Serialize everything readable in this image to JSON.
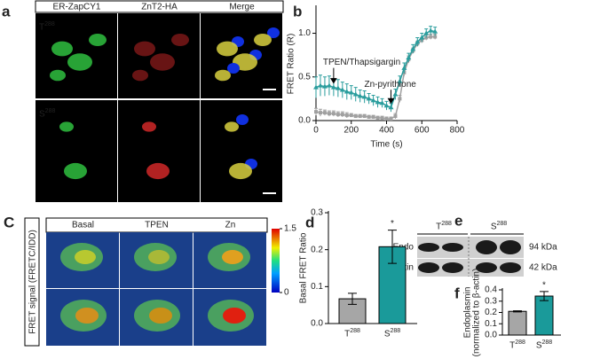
{
  "panel_labels": [
    "a",
    "b",
    "C",
    "d",
    "e",
    "f"
  ],
  "panel_a": {
    "columns": [
      "ER-ZapCY1",
      "ZnT2-HA",
      "Merge"
    ],
    "rows": [
      "T288",
      "S288"
    ]
  },
  "panel_c": {
    "columns": [
      "Basal",
      "TPEN",
      "Zn"
    ],
    "y_label": "FRET signal (FRETC/IDD)",
    "colorbar": {
      "range": [
        0,
        1.5
      ],
      "ticks": [
        0,
        1.5
      ]
    }
  },
  "panel_e": {
    "groups": [
      "T288",
      "S288"
    ],
    "bands": [
      "Endo",
      "β-actin"
    ],
    "sizes": [
      "94 kDa",
      "42 kDa"
    ]
  },
  "chart_data": [
    {
      "type": "line",
      "x_label": "Time (s)",
      "y_label": "FRET Ratio (R)",
      "annotations": [
        "TPEN/Thapsigargin",
        "Zn-pyrithione"
      ],
      "x": [
        0,
        25,
        50,
        75,
        100,
        125,
        150,
        175,
        200,
        225,
        250,
        275,
        300,
        325,
        350,
        375,
        400,
        425,
        450,
        475,
        500,
        525,
        550,
        575,
        600,
        625,
        650,
        675
      ],
      "series": [
        {
          "color": "#2a9d9d",
          "values": [
            0.38,
            0.4,
            0.39,
            0.4,
            0.38,
            0.37,
            0.35,
            0.33,
            0.32,
            0.3,
            0.28,
            0.27,
            0.25,
            0.23,
            0.21,
            0.2,
            0.17,
            0.15,
            0.3,
            0.45,
            0.6,
            0.72,
            0.82,
            0.9,
            0.95,
            1.0,
            1.03,
            1.02
          ],
          "errors": [
            0.12,
            0.12,
            0.11,
            0.11,
            0.1,
            0.1,
            0.09,
            0.09,
            0.08,
            0.08,
            0.07,
            0.07,
            0.06,
            0.06,
            0.06,
            0.05,
            0.05,
            0.05,
            0.06,
            0.06,
            0.06,
            0.05,
            0.05,
            0.05,
            0.05,
            0.05,
            0.05,
            0.05
          ]
        },
        {
          "color": "#a0a0a0",
          "values": [
            0.1,
            0.09,
            0.09,
            0.08,
            0.08,
            0.07,
            0.07,
            0.06,
            0.06,
            0.05,
            0.05,
            0.05,
            0.04,
            0.04,
            0.03,
            0.03,
            0.02,
            0.02,
            0.05,
            0.25,
            0.55,
            0.7,
            0.8,
            0.88,
            0.92,
            0.95,
            0.96,
            0.96
          ],
          "errors": [
            0.04,
            0.04,
            0.03,
            0.03,
            0.03,
            0.03,
            0.03,
            0.03,
            0.02,
            0.02,
            0.02,
            0.02,
            0.02,
            0.02,
            0.02,
            0.02,
            0.02,
            0.02,
            0.03,
            0.04,
            0.04,
            0.04,
            0.03,
            0.03,
            0.03,
            0.03,
            0.03,
            0.03
          ]
        }
      ],
      "xlim": [
        0,
        800
      ],
      "xticks": [
        0,
        200,
        400,
        600,
        800
      ],
      "ylim": [
        0,
        1.3
      ],
      "yticks": [
        {
          "value": 0,
          "label": "0.0"
        },
        {
          "value": 0.5,
          "label": "0.5"
        },
        {
          "value": 1,
          "label": "1.0"
        }
      ]
    },
    {
      "type": "bar",
      "y_label": [
        "Basal FRET Ratio"
      ],
      "annotations": [
        "*"
      ],
      "categories": [
        "T288",
        "S288"
      ],
      "values": [
        0.067,
        0.208
      ],
      "errors": [
        0.015,
        0.045
      ],
      "colors": [
        "#a6a6a6",
        "#1a9a9a"
      ],
      "ylim": [
        0,
        0.3
      ],
      "yticks": [
        {
          "value": 0,
          "label": "0.0"
        },
        0.1,
        0.2,
        0.3
      ]
    },
    {
      "type": "bar",
      "y_label": [
        "Endoplasmin",
        "(normalized to β-actin)"
      ],
      "annotations": [
        "*"
      ],
      "categories": [
        "T288",
        "S288"
      ],
      "values": [
        0.21,
        0.345
      ],
      "errors": [
        0.005,
        0.04
      ],
      "colors": [
        "#a6a6a6",
        "#1a9a9a"
      ],
      "ylim": [
        0,
        0.4
      ],
      "yticks": [
        {
          "value": 0,
          "label": "0.0"
        },
        0.1,
        0.2,
        0.3,
        0.4
      ]
    }
  ]
}
